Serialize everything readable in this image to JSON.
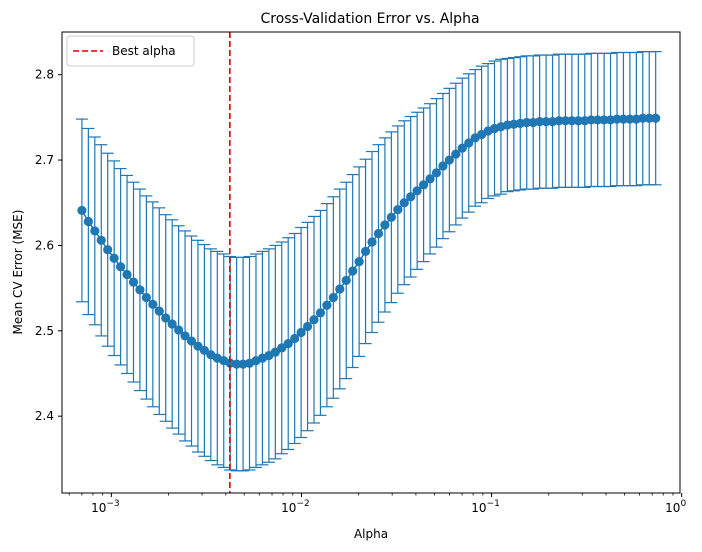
{
  "chart_data": {
    "type": "scatter",
    "title": "Cross-Validation Error vs. Alpha",
    "xlabel": "Alpha",
    "ylabel": "Mean CV Error (MSE)",
    "xscale": "log",
    "xlim": [
      0.00055,
      0.98
    ],
    "ylim": [
      2.31,
      2.85
    ],
    "grid": false,
    "legend": {
      "placement": "top-left",
      "entries": [
        "Best alpha"
      ]
    },
    "colors": {
      "series": "#1f77b4",
      "best_line": "#e00000"
    },
    "x_ticks": [
      {
        "value": 0.001,
        "base": "10",
        "exp": "−3"
      },
      {
        "value": 0.01,
        "base": "10",
        "exp": "−2"
      },
      {
        "value": 0.1,
        "base": "10",
        "exp": "−1"
      },
      {
        "value": 1,
        "base": "10",
        "exp": "0"
      }
    ],
    "y_ticks": [
      "2.4",
      "2.5",
      "2.6",
      "2.7",
      "2.8"
    ],
    "best_alpha": 0.0042,
    "series": [
      {
        "alpha_range": [
          0.0007,
          0.73
        ],
        "mean": [
          2.641,
          2.628,
          2.617,
          2.606,
          2.595,
          2.585,
          2.575,
          2.566,
          2.557,
          2.548,
          2.539,
          2.531,
          2.523,
          2.515,
          2.508,
          2.501,
          2.494,
          2.488,
          2.482,
          2.477,
          2.472,
          2.468,
          2.465,
          2.462,
          2.461,
          2.461,
          2.462,
          2.465,
          2.468,
          2.471,
          2.475,
          2.48,
          2.485,
          2.491,
          2.498,
          2.505,
          2.513,
          2.521,
          2.53,
          2.539,
          2.549,
          2.559,
          2.57,
          2.581,
          2.593,
          2.604,
          2.614,
          2.624,
          2.633,
          2.642,
          2.65,
          2.657,
          2.664,
          2.671,
          2.678,
          2.685,
          2.693,
          2.7,
          2.707,
          2.714,
          2.72,
          2.726,
          2.73,
          2.734,
          2.737,
          2.739,
          2.741,
          2.742,
          2.743,
          2.744,
          2.744,
          2.745,
          2.745,
          2.745,
          2.746,
          2.746,
          2.746,
          2.746,
          2.746,
          2.747,
          2.747,
          2.747,
          2.747,
          2.748,
          2.748,
          2.748,
          2.748,
          2.749,
          2.749,
          2.749
        ],
        "error": [
          0.107,
          0.109,
          0.11,
          0.112,
          0.113,
          0.114,
          0.115,
          0.116,
          0.117,
          0.118,
          0.119,
          0.12,
          0.121,
          0.121,
          0.122,
          0.122,
          0.123,
          0.123,
          0.124,
          0.124,
          0.124,
          0.125,
          0.125,
          0.125,
          0.125,
          0.125,
          0.125,
          0.125,
          0.125,
          0.125,
          0.125,
          0.124,
          0.124,
          0.123,
          0.123,
          0.122,
          0.121,
          0.12,
          0.119,
          0.118,
          0.117,
          0.115,
          0.113,
          0.111,
          0.108,
          0.106,
          0.104,
          0.102,
          0.1,
          0.098,
          0.096,
          0.094,
          0.092,
          0.09,
          0.088,
          0.087,
          0.085,
          0.084,
          0.083,
          0.082,
          0.081,
          0.08,
          0.08,
          0.079,
          0.079,
          0.079,
          0.078,
          0.078,
          0.078,
          0.078,
          0.078,
          0.078,
          0.078,
          0.078,
          0.078,
          0.078,
          0.078,
          0.078,
          0.078,
          0.078,
          0.078,
          0.078,
          0.078,
          0.078,
          0.078,
          0.078,
          0.078,
          0.078,
          0.078,
          0.078
        ]
      }
    ]
  }
}
